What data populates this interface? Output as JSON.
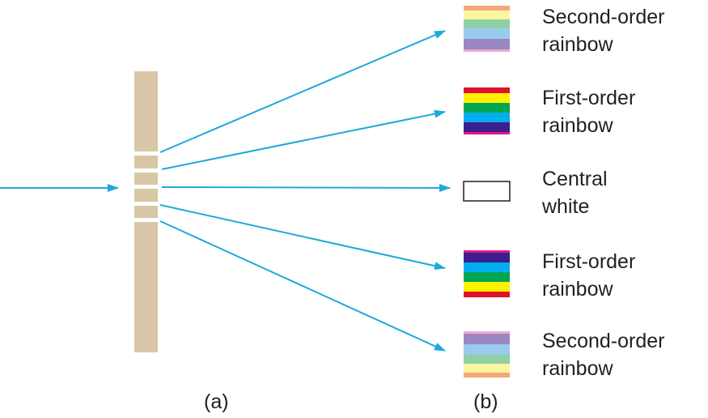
{
  "colors": {
    "ray": "#1fa9dc",
    "grating": "#d9c7a7"
  },
  "labels": [
    {
      "line1": "Second-order",
      "line2": "rainbow"
    },
    {
      "line1": "First-order",
      "line2": "rainbow"
    },
    {
      "line1": "Central",
      "line2": "white"
    },
    {
      "line1": "First-order",
      "line2": "rainbow"
    },
    {
      "line1": "Second-order",
      "line2": "rainbow"
    }
  ],
  "swatches": {
    "second_order": [
      "#f4a87a",
      "#fdf6a0",
      "#8fd0a4",
      "#99cbf0",
      "#9b87c2",
      "#f0a8d0"
    ],
    "first_order": [
      "#e2112b",
      "#fff200",
      "#00a651",
      "#00aeef",
      "#3b1f8c",
      "#e5178a"
    ]
  },
  "captions": {
    "a": "(a)",
    "b": "(b)"
  }
}
